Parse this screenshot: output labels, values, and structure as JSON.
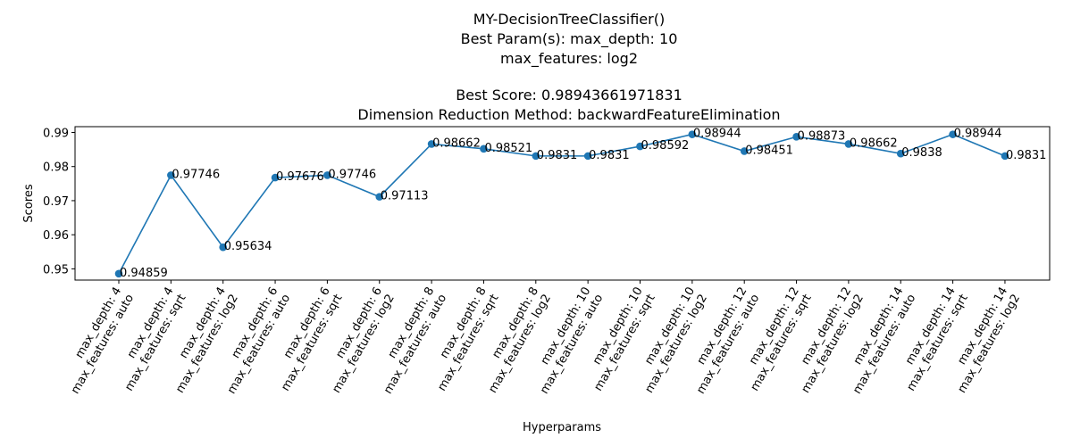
{
  "chart_data": {
    "type": "line",
    "title_lines": [
      "MY-DecisionTreeClassifier()",
      "Best Param(s): max_depth: 10",
      "max_features: log2",
      "",
      "Best Score: 0.98943661971831",
      "Dimension Reduction Method: backwardFeatureElimination"
    ],
    "xlabel": "Hyperparams",
    "ylabel": "Scores",
    "ylim": [
      0.9467,
      0.9917
    ],
    "yticks": [
      0.95,
      0.96,
      0.97,
      0.98,
      0.99
    ],
    "ytick_labels": [
      "0.95",
      "0.96",
      "0.97",
      "0.98",
      "0.99"
    ],
    "categories": [
      [
        "max_depth: 4",
        "max_features: auto"
      ],
      [
        "max_depth: 4",
        "max_features: sqrt"
      ],
      [
        "max_depth: 4",
        "max_features: log2"
      ],
      [
        "max_depth: 6",
        "max_features: auto"
      ],
      [
        "max_depth: 6",
        "max_features: sqrt"
      ],
      [
        "max_depth: 6",
        "max_features: log2"
      ],
      [
        "max_depth: 8",
        "max_features: auto"
      ],
      [
        "max_depth: 8",
        "max_features: sqrt"
      ],
      [
        "max_depth: 8",
        "max_features: log2"
      ],
      [
        "max_depth: 10",
        "max_features: auto"
      ],
      [
        "max_depth: 10",
        "max_features: sqrt"
      ],
      [
        "max_depth: 10",
        "max_features: log2"
      ],
      [
        "max_depth: 12",
        "max_features: auto"
      ],
      [
        "max_depth: 12",
        "max_features: sqrt"
      ],
      [
        "max_depth: 12",
        "max_features: log2"
      ],
      [
        "max_depth: 14",
        "max_features: auto"
      ],
      [
        "max_depth: 14",
        "max_features: sqrt"
      ],
      [
        "max_depth: 14",
        "max_features: log2"
      ]
    ],
    "values": [
      0.94859,
      0.97746,
      0.95634,
      0.97676,
      0.97746,
      0.97113,
      0.98662,
      0.98521,
      0.9831,
      0.9831,
      0.98592,
      0.98944,
      0.98451,
      0.98873,
      0.98662,
      0.9838,
      0.98944,
      0.9831
    ],
    "value_labels": [
      "0.94859",
      "0.97746",
      "0.95634",
      "0.97676",
      "0.97746",
      "0.97113",
      "0.98662",
      "0.98521",
      "0.9831",
      "0.9831",
      "0.98592",
      "0.98944",
      "0.98451",
      "0.98873",
      "0.98662",
      "0.9838",
      "0.98944",
      "0.9831"
    ],
    "grid": false,
    "legend": "none",
    "colors": {
      "line": "#1f77b4",
      "marker": "#1f77b4"
    }
  }
}
